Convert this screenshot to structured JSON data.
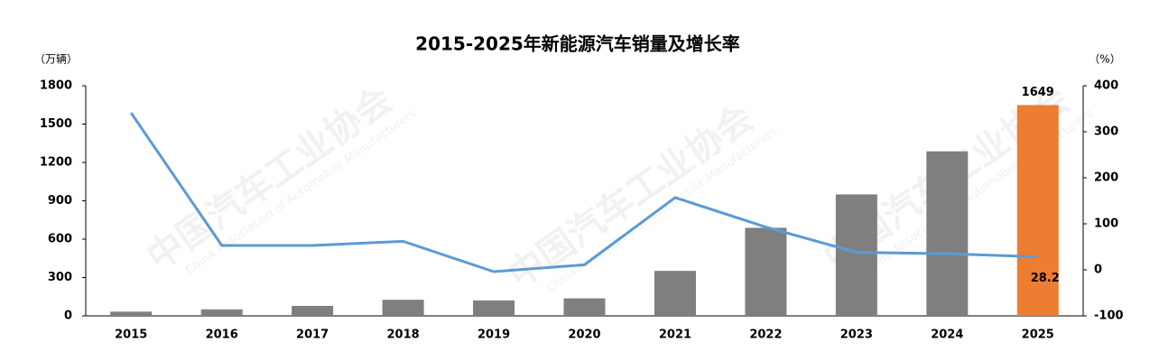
{
  "chart_data": {
    "type": "bar-line",
    "title": "2015-2025年新能源汽车销量及增长率",
    "y_label": "（万辆）",
    "y2_label": "（%）",
    "watermark": "中国汽车工业协会",
    "watermark_en": "China Association of Automobile Manufacturers",
    "categories": [
      "2015",
      "2016",
      "2017",
      "2018",
      "2019",
      "2020",
      "2021",
      "2022",
      "2023",
      "2024",
      "2025"
    ],
    "series": [
      {
        "type": "bar",
        "colors": [
          "#7f7f7f",
          "#7f7f7f",
          "#7f7f7f",
          "#7f7f7f",
          "#7f7f7f",
          "#7f7f7f",
          "#7f7f7f",
          "#7f7f7f",
          "#7f7f7f",
          "#7f7f7f",
          "#ed7d31"
        ],
        "values": [
          33,
          51,
          78,
          126,
          121,
          137,
          352,
          689,
          950,
          1287,
          1649
        ],
        "value_labels": [
          null,
          null,
          null,
          null,
          null,
          null,
          null,
          null,
          null,
          null,
          "1649"
        ]
      },
      {
        "type": "line",
        "axis": "y2",
        "color": "#5b9bd5",
        "values": [
          341,
          53,
          53,
          62,
          -4,
          11,
          157,
          93,
          38,
          35,
          28.2
        ],
        "value_labels": [
          null,
          null,
          null,
          null,
          null,
          null,
          null,
          null,
          null,
          null,
          "28.2"
        ]
      }
    ],
    "ylim": [
      0,
      1800
    ],
    "yticks": [
      0,
      300,
      600,
      900,
      1200,
      1500,
      1800
    ],
    "y2lim": [
      -100,
      400
    ],
    "y2ticks": [
      -100,
      0,
      100,
      200,
      300,
      400
    ]
  }
}
